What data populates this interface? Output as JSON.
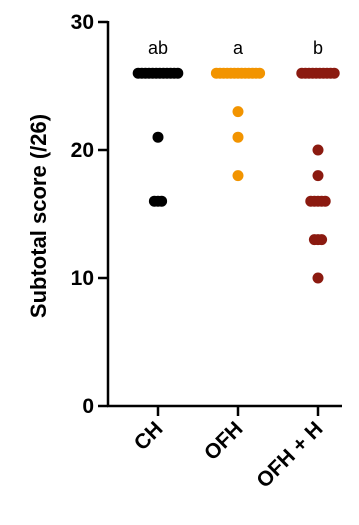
{
  "chart_data": {
    "type": "scatter",
    "ylabel": "Subtotal score (/26)",
    "ylim": [
      0,
      30
    ],
    "yticks": [
      0,
      10,
      20,
      30
    ],
    "categories": [
      "CH",
      "OFH",
      "OFH + H"
    ],
    "significance_letters": [
      "ab",
      "a",
      "b"
    ],
    "grid": false,
    "series": [
      {
        "category": "CH",
        "color": "#000000",
        "points": [
          26,
          26,
          26,
          26,
          26,
          26,
          26,
          26,
          26,
          26,
          26,
          26,
          21,
          16,
          16,
          16
        ]
      },
      {
        "category": "OFH",
        "color": "#f29400",
        "points": [
          26,
          26,
          26,
          26,
          26,
          26,
          26,
          26,
          26,
          26,
          26,
          26,
          26,
          23,
          21,
          18
        ]
      },
      {
        "category": "OFH + H",
        "color": "#8b1a10",
        "points": [
          26,
          26,
          26,
          26,
          26,
          26,
          26,
          26,
          26,
          26,
          20,
          18,
          16,
          16,
          16,
          16,
          16,
          13,
          13,
          13,
          10
        ]
      }
    ]
  }
}
